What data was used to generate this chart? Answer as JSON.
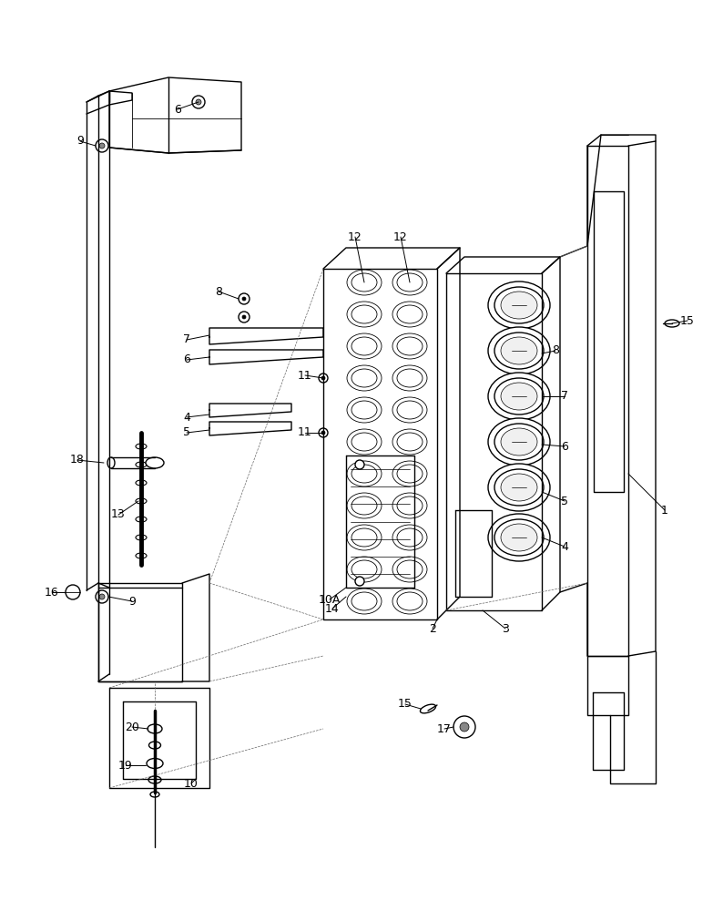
{
  "background_color": "#ffffff",
  "line_color": "#000000",
  "figsize": [
    7.72,
    10.0
  ],
  "dpi": 100,
  "lw": 1.0,
  "tlw": 0.6
}
